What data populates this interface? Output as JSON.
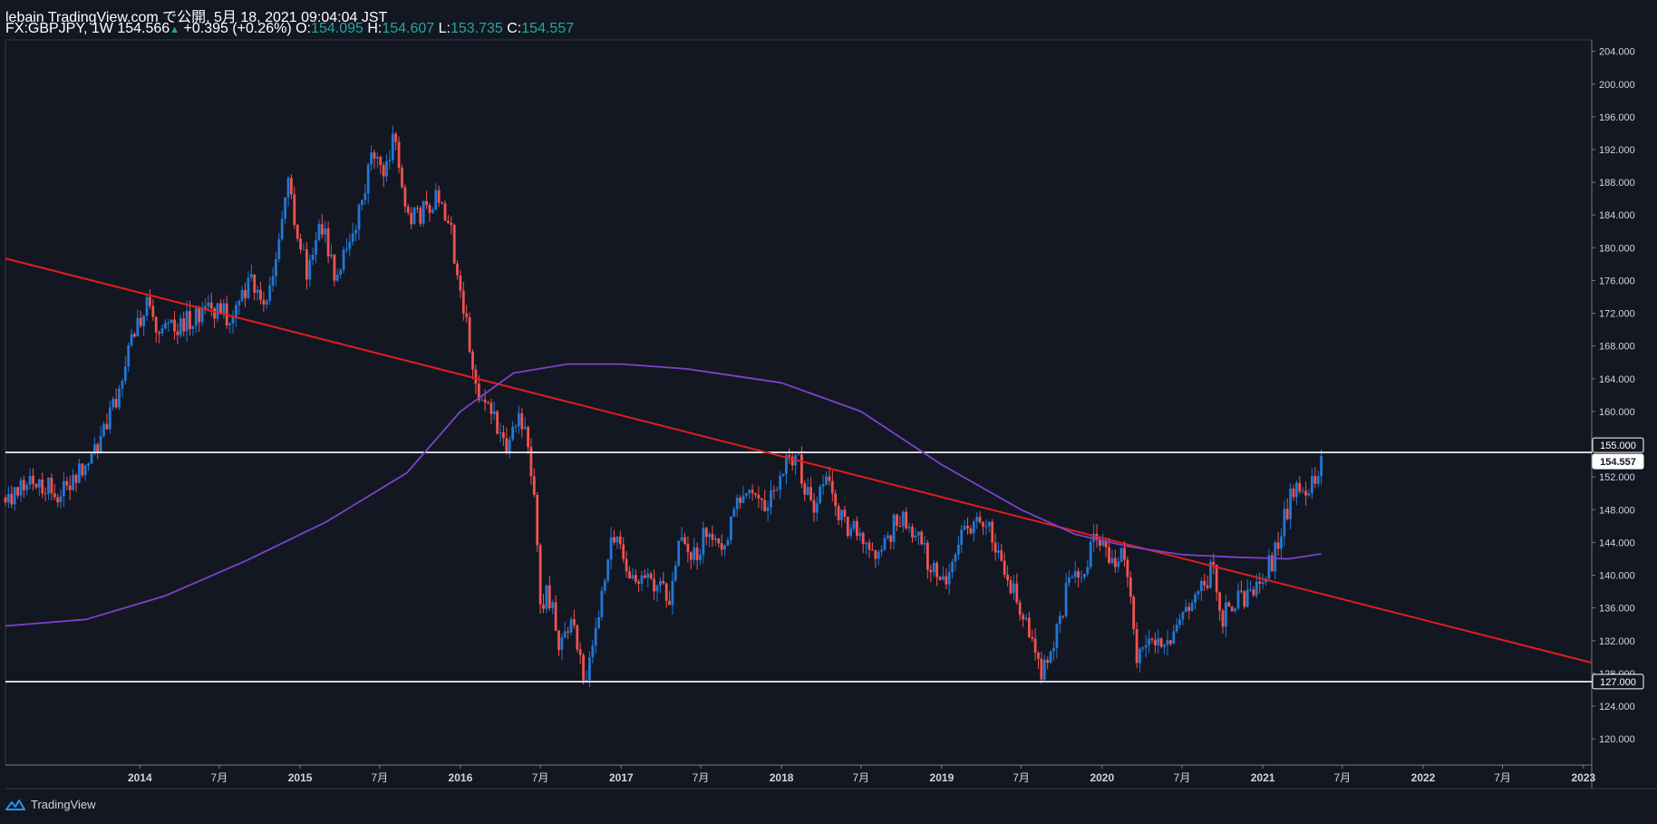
{
  "header": {
    "published": "lebain TradingView.com で公開, 5月 18, 2021 09:04:04 JST",
    "symbol": "FX:GBPJPY, 1W",
    "last": "154.566",
    "change": "+0.395 (+0.26%)",
    "o_label": "O:",
    "o_value": "154.095",
    "h_label": "H:",
    "h_value": "154.607",
    "l_label": "L:",
    "l_value": "153.735",
    "c_label": "C:",
    "c_value": "154.557"
  },
  "footer": {
    "brand": "TradingView"
  },
  "colors": {
    "background": "#131722",
    "up": "#2177d4",
    "down": "#ef5350",
    "trendline": "#e01e1e",
    "ma": "#7b43c9",
    "hline": "#ffffff",
    "axis_text": "#d1d4dc"
  },
  "chart_data": {
    "type": "candlestick",
    "symbol": "GBPJPY",
    "interval": "1W",
    "x_range": [
      "2013-03-01",
      "2023-01-20"
    ],
    "ylim": [
      116.8,
      205.4
    ],
    "y_ticks": [
      120,
      124,
      128,
      132,
      136,
      140,
      144,
      148,
      152,
      156,
      160,
      164,
      168,
      172,
      176,
      180,
      184,
      188,
      192,
      196,
      200,
      204
    ],
    "y_tick_labels": [
      "120.000",
      "124.000",
      "128.000",
      "132.000",
      "136.000",
      "140.000",
      "144.000",
      "148.000",
      "152.000",
      "156.000",
      "160.000",
      "164.000",
      "168.000",
      "172.000",
      "176.000",
      "180.000",
      "184.000",
      "188.000",
      "192.000",
      "196.000",
      "200.000",
      "204.000"
    ],
    "x_ticks": [
      {
        "date": "2014-01-01",
        "label": "2014"
      },
      {
        "date": "2014-07-01",
        "label": "7月"
      },
      {
        "date": "2015-01-01",
        "label": "2015"
      },
      {
        "date": "2015-07-01",
        "label": "7月"
      },
      {
        "date": "2016-01-01",
        "label": "2016"
      },
      {
        "date": "2016-07-01",
        "label": "7月"
      },
      {
        "date": "2017-01-01",
        "label": "2017"
      },
      {
        "date": "2017-07-01",
        "label": "7月"
      },
      {
        "date": "2018-01-01",
        "label": "2018"
      },
      {
        "date": "2018-07-01",
        "label": "7月"
      },
      {
        "date": "2019-01-01",
        "label": "2019"
      },
      {
        "date": "2019-07-01",
        "label": "7月"
      },
      {
        "date": "2020-01-01",
        "label": "2020"
      },
      {
        "date": "2020-07-01",
        "label": "7月"
      },
      {
        "date": "2021-01-01",
        "label": "2021"
      },
      {
        "date": "2021-07-01",
        "label": "7月"
      },
      {
        "date": "2022-01-01",
        "label": "2022"
      },
      {
        "date": "2022-07-01",
        "label": "7月"
      },
      {
        "date": "2023-01-01",
        "label": "2023"
      }
    ],
    "price_path": [
      [
        "2013-03-01",
        149.5
      ],
      [
        "2013-05-10",
        151.5
      ],
      [
        "2013-07-05",
        150.0
      ],
      [
        "2013-08-20",
        153.0
      ],
      [
        "2013-10-15",
        157.5
      ],
      [
        "2013-12-15",
        168.5
      ],
      [
        "2014-01-15",
        173.5
      ],
      [
        "2014-02-10",
        169.0
      ],
      [
        "2014-04-01",
        170.5
      ],
      [
        "2014-06-15",
        172.5
      ],
      [
        "2014-08-01",
        171.5
      ],
      [
        "2014-09-15",
        176.0
      ],
      [
        "2014-10-15",
        172.5
      ],
      [
        "2014-11-05",
        178.5
      ],
      [
        "2014-12-05",
        187.5
      ],
      [
        "2015-01-20",
        176.5
      ],
      [
        "2015-02-15",
        184.0
      ],
      [
        "2015-03-20",
        177.0
      ],
      [
        "2015-04-25",
        180.0
      ],
      [
        "2015-06-15",
        191.5
      ],
      [
        "2015-07-10",
        188.0
      ],
      [
        "2015-08-05",
        194.0
      ],
      [
        "2015-09-01",
        183.0
      ],
      [
        "2015-10-01",
        184.0
      ],
      [
        "2015-11-15",
        186.5
      ],
      [
        "2015-12-10",
        182.0
      ],
      [
        "2016-01-20",
        168.5
      ],
      [
        "2016-02-10",
        162.5
      ],
      [
        "2016-03-15",
        160.0
      ],
      [
        "2016-04-15",
        155.0
      ],
      [
        "2016-05-15",
        160.5
      ],
      [
        "2016-06-15",
        152.0
      ],
      [
        "2016-07-01",
        137.0
      ],
      [
        "2016-07-20",
        137.5
      ],
      [
        "2016-08-15",
        131.5
      ],
      [
        "2016-09-15",
        134.0
      ],
      [
        "2016-10-10",
        127.0
      ],
      [
        "2016-11-01",
        132.5
      ],
      [
        "2016-12-15",
        145.5
      ],
      [
        "2017-01-20",
        140.5
      ],
      [
        "2017-02-15",
        140.0
      ],
      [
        "2017-03-20",
        138.5
      ],
      [
        "2017-04-20",
        137.0
      ],
      [
        "2017-05-15",
        145.0
      ],
      [
        "2017-06-20",
        142.0
      ],
      [
        "2017-07-20",
        146.5
      ],
      [
        "2017-08-20",
        141.5
      ],
      [
        "2017-09-25",
        150.0
      ],
      [
        "2017-10-25",
        149.5
      ],
      [
        "2017-11-20",
        148.5
      ],
      [
        "2017-12-20",
        151.5
      ],
      [
        "2018-02-01",
        155.0
      ],
      [
        "2018-03-10",
        148.0
      ],
      [
        "2018-04-15",
        152.5
      ],
      [
        "2018-05-20",
        146.5
      ],
      [
        "2018-06-25",
        145.5
      ],
      [
        "2018-08-15",
        142.0
      ],
      [
        "2018-09-20",
        147.0
      ],
      [
        "2018-10-25",
        145.5
      ],
      [
        "2018-12-10",
        141.0
      ],
      [
        "2019-01-05",
        139.0
      ],
      [
        "2019-02-10",
        144.0
      ],
      [
        "2019-03-20",
        147.0
      ],
      [
        "2019-04-25",
        145.5
      ],
      [
        "2019-05-25",
        140.0
      ],
      [
        "2019-06-25",
        136.5
      ],
      [
        "2019-08-15",
        128.0
      ],
      [
        "2019-09-20",
        133.0
      ],
      [
        "2019-10-20",
        140.0
      ],
      [
        "2019-11-25",
        141.5
      ],
      [
        "2019-12-15",
        145.5
      ],
      [
        "2020-01-20",
        142.0
      ],
      [
        "2020-02-25",
        142.5
      ],
      [
        "2020-03-20",
        129.0
      ],
      [
        "2020-04-20",
        133.0
      ],
      [
        "2020-05-20",
        130.5
      ],
      [
        "2020-06-20",
        134.5
      ],
      [
        "2020-07-20",
        135.0
      ],
      [
        "2020-08-20",
        139.0
      ],
      [
        "2020-09-10",
        141.0
      ],
      [
        "2020-09-25",
        134.5
      ],
      [
        "2020-10-25",
        136.5
      ],
      [
        "2020-11-25",
        137.5
      ],
      [
        "2020-12-25",
        140.0
      ],
      [
        "2021-01-25",
        142.0
      ],
      [
        "2021-02-25",
        148.0
      ],
      [
        "2021-03-20",
        151.5
      ],
      [
        "2021-04-15",
        150.0
      ],
      [
        "2021-05-14",
        154.557
      ]
    ],
    "moving_average": [
      [
        "2013-03-01",
        133.8
      ],
      [
        "2013-09-01",
        134.6
      ],
      [
        "2014-03-01",
        137.5
      ],
      [
        "2014-09-01",
        141.8
      ],
      [
        "2015-03-01",
        146.5
      ],
      [
        "2015-09-01",
        152.5
      ],
      [
        "2016-01-01",
        160.0
      ],
      [
        "2016-05-01",
        164.7
      ],
      [
        "2016-09-01",
        165.8
      ],
      [
        "2017-01-01",
        165.8
      ],
      [
        "2017-06-01",
        165.2
      ],
      [
        "2018-01-01",
        163.5
      ],
      [
        "2018-07-01",
        160.0
      ],
      [
        "2019-01-01",
        153.5
      ],
      [
        "2019-07-01",
        148.0
      ],
      [
        "2019-11-01",
        145.0
      ],
      [
        "2020-03-01",
        143.5
      ],
      [
        "2020-07-01",
        142.5
      ],
      [
        "2020-11-01",
        142.2
      ],
      [
        "2021-03-01",
        142.0
      ],
      [
        "2021-05-14",
        142.6
      ]
    ],
    "trendline": {
      "start": [
        "2013-03-01",
        178.7
      ],
      "end": [
        "2023-01-20",
        129.3
      ]
    },
    "horizontal_lines": [
      155.0,
      127.0
    ],
    "price_labels": [
      {
        "value": 155.0,
        "label": "155.000",
        "style": "outline"
      },
      {
        "value": 154.557,
        "label": "154.557",
        "style": "filled"
      },
      {
        "value": 127.0,
        "label": "127.000",
        "style": "outline"
      }
    ],
    "extremes": {
      "high": 195.88,
      "low": 124.0,
      "last_close": 154.557
    }
  }
}
